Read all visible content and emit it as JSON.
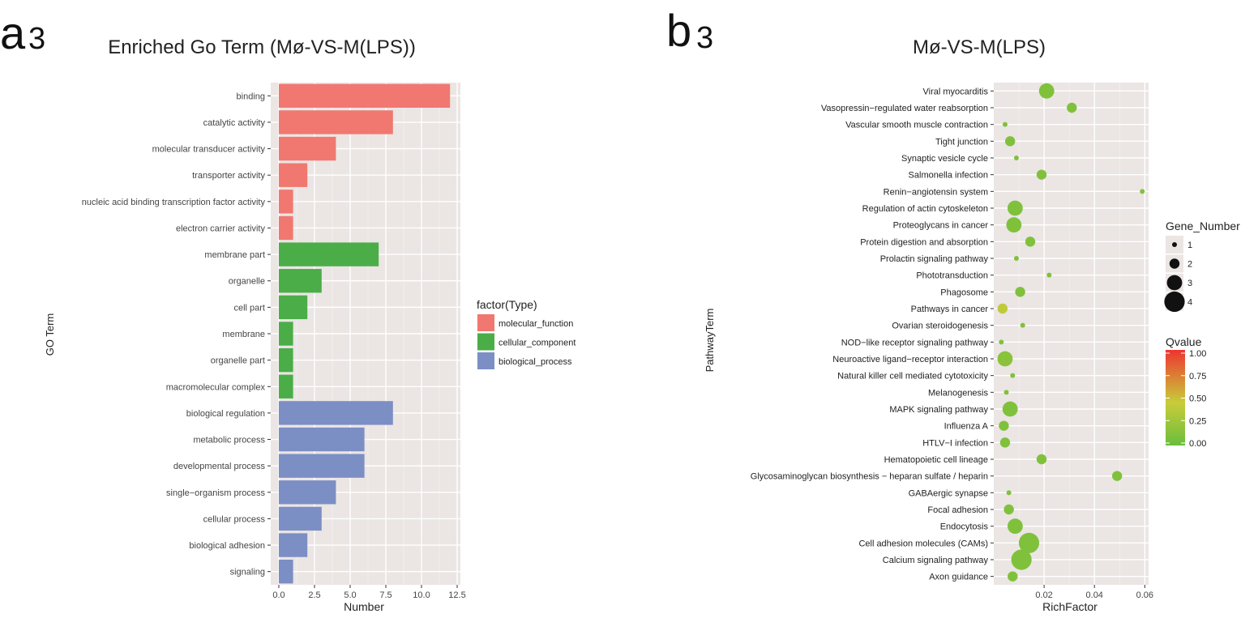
{
  "panel_a": {
    "label_main": "a",
    "label_sub": "3",
    "title": "Enriched Go Term (Mø-VS-M(LPS))"
  },
  "panel_b": {
    "label_main": "b",
    "label_sub": "3",
    "title": "Mø-VS-M(LPS)"
  },
  "chart_data": [
    {
      "type": "bar",
      "orientation": "horizontal",
      "title": "Enriched Go Term (Mø-VS-M(LPS))",
      "xlabel": "Number",
      "ylabel": "GO Term",
      "xlim": [
        0,
        12.5
      ],
      "xticks": [
        "0.0",
        "2.5",
        "5.0",
        "7.5",
        "10.0",
        "12.5"
      ],
      "grid": true,
      "legend": {
        "title": "factor(Type)",
        "position": "right",
        "entries": [
          {
            "label": "molecular_function",
            "color": "#F07870"
          },
          {
            "label": "cellular_component",
            "color": "#4BAD48"
          },
          {
            "label": "biological_process",
            "color": "#7B8FC4"
          }
        ]
      },
      "categories": [
        "binding",
        "catalytic activity",
        "molecular transducer activity",
        "transporter activity",
        "nucleic acid binding transcription factor activity",
        "electron carrier activity",
        "membrane part",
        "organelle",
        "cell part",
        "membrane",
        "organelle part",
        "macromolecular complex",
        "biological regulation",
        "metabolic process",
        "developmental process",
        "single−organism process",
        "cellular process",
        "biological adhesion",
        "signaling"
      ],
      "values": [
        12,
        8,
        4,
        2,
        1,
        1,
        7,
        3,
        2,
        1,
        1,
        1,
        8,
        6,
        6,
        4,
        3,
        2,
        1
      ],
      "types": [
        "molecular_function",
        "molecular_function",
        "molecular_function",
        "molecular_function",
        "molecular_function",
        "molecular_function",
        "cellular_component",
        "cellular_component",
        "cellular_component",
        "cellular_component",
        "cellular_component",
        "cellular_component",
        "biological_process",
        "biological_process",
        "biological_process",
        "biological_process",
        "biological_process",
        "biological_process",
        "biological_process"
      ]
    },
    {
      "type": "scatter",
      "title": "Mø-VS-M(LPS)",
      "xlabel": "RichFactor",
      "ylabel": "PathwayTerm",
      "xlim": [
        0,
        0.0615
      ],
      "xticks": [
        0.02,
        0.04,
        0.06
      ],
      "xtick_labels": [
        "0.02",
        "0.04",
        "0.06"
      ],
      "grid": true,
      "legend_size": {
        "title": "Gene_Number",
        "position": "right",
        "values": [
          1,
          2,
          3,
          4
        ]
      },
      "legend_color": {
        "title": "Qvalue",
        "position": "right",
        "range": [
          0,
          1
        ],
        "ticks": [
          "1.00",
          "0.75",
          "0.50",
          "0.25",
          "0.00"
        ],
        "colors": {
          "low": "#6BBE3C",
          "mid": "#C8CC3A",
          "high": "#EE3530"
        }
      },
      "categories": [
        "Viral myocarditis",
        "Vasopressin−regulated water reabsorption",
        "Vascular smooth muscle contraction",
        "Tight junction",
        "Synaptic vesicle cycle",
        "Salmonella infection",
        "Renin−angiotensin system",
        "Regulation of actin cytoskeleton",
        "Proteoglycans in cancer",
        "Protein digestion and absorption",
        "Prolactin signaling pathway",
        "Phototransduction",
        "Phagosome",
        "Pathways in cancer",
        "Ovarian steroidogenesis",
        "NOD−like receptor signaling pathway",
        "Neuroactive ligand−receptor interaction",
        "Natural killer cell mediated cytotoxicity",
        "Melanogenesis",
        "MAPK signaling pathway",
        "Influenza A",
        "HTLV−I infection",
        "Hematopoietic cell lineage",
        "Glycosaminoglycan biosynthesis − heparan sulfate / heparin",
        "GABAergic synapse",
        "Focal adhesion",
        "Endocytosis",
        "Cell adhesion molecules (CAMs)",
        "Calcium signaling pathway",
        "Axon guidance"
      ],
      "points": [
        {
          "x": 0.021,
          "gene_number": 3,
          "qvalue": 0.1
        },
        {
          "x": 0.031,
          "gene_number": 2,
          "qvalue": 0.1
        },
        {
          "x": 0.0045,
          "gene_number": 1,
          "qvalue": 0.1
        },
        {
          "x": 0.0065,
          "gene_number": 2,
          "qvalue": 0.1
        },
        {
          "x": 0.009,
          "gene_number": 1,
          "qvalue": 0.1
        },
        {
          "x": 0.019,
          "gene_number": 2,
          "qvalue": 0.1
        },
        {
          "x": 0.059,
          "gene_number": 1,
          "qvalue": 0.1
        },
        {
          "x": 0.0085,
          "gene_number": 3,
          "qvalue": 0.1
        },
        {
          "x": 0.008,
          "gene_number": 3,
          "qvalue": 0.1
        },
        {
          "x": 0.0145,
          "gene_number": 2,
          "qvalue": 0.1
        },
        {
          "x": 0.009,
          "gene_number": 1,
          "qvalue": 0.1
        },
        {
          "x": 0.022,
          "gene_number": 1,
          "qvalue": 0.1
        },
        {
          "x": 0.0105,
          "gene_number": 2,
          "qvalue": 0.1
        },
        {
          "x": 0.0035,
          "gene_number": 2,
          "qvalue": 0.4
        },
        {
          "x": 0.0115,
          "gene_number": 1,
          "qvalue": 0.1
        },
        {
          "x": 0.003,
          "gene_number": 1,
          "qvalue": 0.1
        },
        {
          "x": 0.0045,
          "gene_number": 3,
          "qvalue": 0.15
        },
        {
          "x": 0.0075,
          "gene_number": 1,
          "qvalue": 0.1
        },
        {
          "x": 0.005,
          "gene_number": 1,
          "qvalue": 0.1
        },
        {
          "x": 0.0065,
          "gene_number": 3,
          "qvalue": 0.1
        },
        {
          "x": 0.004,
          "gene_number": 2,
          "qvalue": 0.1
        },
        {
          "x": 0.0045,
          "gene_number": 2,
          "qvalue": 0.1
        },
        {
          "x": 0.019,
          "gene_number": 2,
          "qvalue": 0.1
        },
        {
          "x": 0.049,
          "gene_number": 2,
          "qvalue": 0.1
        },
        {
          "x": 0.006,
          "gene_number": 1,
          "qvalue": 0.1
        },
        {
          "x": 0.006,
          "gene_number": 2,
          "qvalue": 0.1
        },
        {
          "x": 0.0085,
          "gene_number": 3,
          "qvalue": 0.1
        },
        {
          "x": 0.014,
          "gene_number": 4,
          "qvalue": 0.1
        },
        {
          "x": 0.011,
          "gene_number": 4,
          "qvalue": 0.1
        },
        {
          "x": 0.0075,
          "gene_number": 2,
          "qvalue": 0.1
        }
      ]
    }
  ]
}
